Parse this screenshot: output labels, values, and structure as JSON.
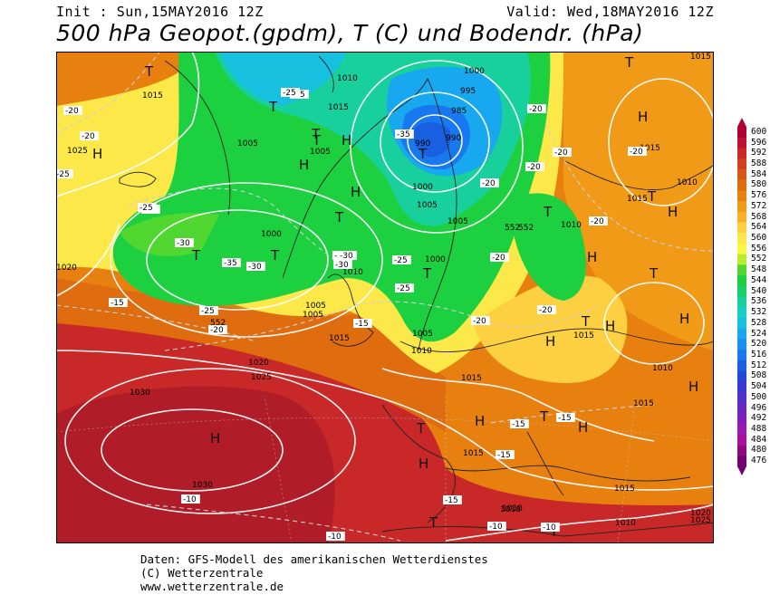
{
  "header": {
    "init": "Init : Sun,15MAY2016 12Z",
    "valid": "Valid: Wed,18MAY2016 12Z",
    "title": "500 hPa Geopot.(gpdm), T (C) und Bodendr. (hPa)"
  },
  "footer": {
    "line1": "Daten: GFS-Modell des amerikanischen Wetterdienstes",
    "line2": "(C) Wetterzentrale",
    "line3": "www.wetterzentrale.de"
  },
  "colorbar": {
    "ticks": [
      "600",
      "596",
      "592",
      "588",
      "584",
      "580",
      "576",
      "572",
      "568",
      "564",
      "560",
      "556",
      "552",
      "548",
      "544",
      "540",
      "536",
      "532",
      "528",
      "524",
      "520",
      "516",
      "512",
      "508",
      "504",
      "500",
      "496",
      "492",
      "488",
      "484",
      "480",
      "476"
    ],
    "colors": [
      "#b00030",
      "#c01030",
      "#c82828",
      "#d04020",
      "#d85818",
      "#e06c10",
      "#e88010",
      "#f09a18",
      "#f8b028",
      "#fcd040",
      "#fce848",
      "#f8f840",
      "#b8ec30",
      "#50d830",
      "#1cd040",
      "#18d068",
      "#18d09c",
      "#18d0c8",
      "#18c0e0",
      "#18a8f0",
      "#1890f0",
      "#1878f0",
      "#1860e0",
      "#2048d8",
      "#3838d0",
      "#5030c8",
      "#6828c0",
      "#8020b8",
      "#9818b0",
      "#a810a0",
      "#900880",
      "#700070"
    ]
  },
  "map": {
    "pressure_labels": [
      "1015",
      "1000",
      "995",
      "985",
      "990",
      "990",
      "1010",
      "1015",
      "1005",
      "1005",
      "1000",
      "1005",
      "1005",
      "1000",
      "1010",
      "1010",
      "1005",
      "1000",
      "1005",
      "1010",
      "1005",
      "1015",
      "1020",
      "1025",
      "1030",
      "1030",
      "1015",
      "1015",
      "1015",
      "1010",
      "1010",
      "1015",
      "1015",
      "1010",
      "1025",
      "1020",
      "1015",
      "1015",
      "1010",
      "1010",
      "1020",
      "1025",
      "1015"
    ],
    "temp_labels": [
      "-20",
      "-20",
      "-25",
      "-30",
      "-25",
      "-30",
      "-35",
      "-30",
      "-35",
      "-25",
      "-25",
      "-30",
      "-30",
      "-30",
      "-25",
      "-25",
      "-20",
      "-20",
      "-20",
      "-15",
      "-15",
      "-20",
      "-20",
      "-20",
      "-20",
      "-20",
      "-20",
      "-15",
      "-15",
      "-10",
      "-10",
      "-15",
      "-10",
      "-15",
      "-25",
      "-10",
      "-20"
    ],
    "geopot_labels": [
      "552",
      "552",
      "552"
    ],
    "high_marker": "H",
    "low_marker": "T"
  }
}
